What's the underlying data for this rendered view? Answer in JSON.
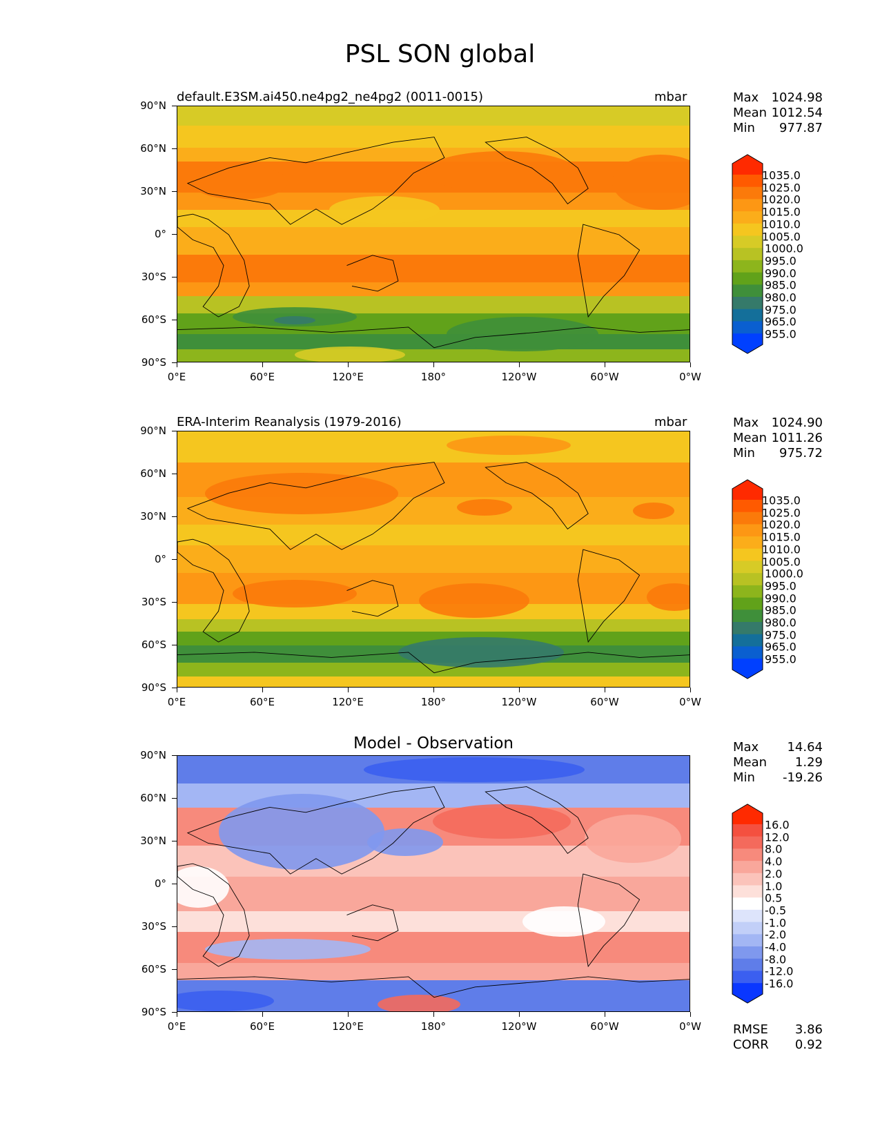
{
  "figure_title": "PSL SON global",
  "panels": [
    {
      "id": "model",
      "title_left": "default.E3SM.ai450.ne4pg2_ne4pg2 (0011-0015)",
      "title_right": "mbar",
      "stats": [
        {
          "label": "Max",
          "value": "1024.98"
        },
        {
          "label": "Mean",
          "value": "1012.54"
        },
        {
          "label": "Min",
          "value": "977.87"
        }
      ],
      "colorbar": {
        "labels": [
          "1035.0",
          "1025.0",
          "1020.0",
          "1015.0",
          "1010.0",
          "1005.0",
          "1000.0",
          "995.0",
          "990.0",
          "985.0",
          "980.0",
          "975.0",
          "965.0",
          "955.0"
        ],
        "colors": [
          "#ff2a00",
          "#ff5a00",
          "#fb7a0a",
          "#fd9714",
          "#fbad1a",
          "#f5c61f",
          "#d7cb26",
          "#b8c223",
          "#8db51c",
          "#61a21a",
          "#3f8f3a",
          "#357a6a",
          "#146f9a",
          "#0a5fd0",
          "#0040ff"
        ]
      }
    },
    {
      "id": "obs",
      "title_left": "ERA-Interim Reanalysis (1979-2016)",
      "title_right": "mbar",
      "stats": [
        {
          "label": "Max",
          "value": "1024.90"
        },
        {
          "label": "Mean",
          "value": "1011.26"
        },
        {
          "label": "Min",
          "value": "975.72"
        }
      ],
      "colorbar": {
        "labels": [
          "1035.0",
          "1025.0",
          "1020.0",
          "1015.0",
          "1010.0",
          "1005.0",
          "1000.0",
          "995.0",
          "990.0",
          "985.0",
          "980.0",
          "975.0",
          "965.0",
          "955.0"
        ],
        "colors": [
          "#ff2a00",
          "#ff5a00",
          "#fb7a0a",
          "#fd9714",
          "#fbad1a",
          "#f5c61f",
          "#d7cb26",
          "#b8c223",
          "#8db51c",
          "#61a21a",
          "#3f8f3a",
          "#357a6a",
          "#146f9a",
          "#0a5fd0",
          "#0040ff"
        ]
      }
    },
    {
      "id": "diff",
      "title_center": "Model - Observation",
      "stats": [
        {
          "label": "Max",
          "value": "14.64"
        },
        {
          "label": "Mean",
          "value": "1.29"
        },
        {
          "label": "Min",
          "value": "-19.26"
        }
      ],
      "colorbar": {
        "labels": [
          "16.0",
          "12.0",
          "8.0",
          "4.0",
          "2.0",
          "1.0",
          "0.5",
          "-0.5",
          "-1.0",
          "-2.0",
          "-4.0",
          "-8.0",
          "-12.0",
          "-16.0"
        ],
        "colors": [
          "#ff2a00",
          "#f4503f",
          "#f46a5c",
          "#f78a7c",
          "#f9a79b",
          "#fbc3ba",
          "#fde0da",
          "#ffffff",
          "#dde4fb",
          "#c2cff8",
          "#a3b6f4",
          "#7f98ee",
          "#5f7de9",
          "#3b5ff0",
          "#0a37ff"
        ]
      },
      "bottom_stats": [
        {
          "label": "RMSE",
          "value": "3.86"
        },
        {
          "label": "CORR",
          "value": "0.92"
        }
      ]
    }
  ],
  "axes": {
    "y_ticks": [
      "90°N",
      "60°N",
      "30°N",
      "0°",
      "30°S",
      "60°S",
      "90°S"
    ],
    "x_ticks": [
      "0°E",
      "60°E",
      "120°E",
      "180°",
      "120°W",
      "60°W",
      "0°W"
    ]
  }
}
